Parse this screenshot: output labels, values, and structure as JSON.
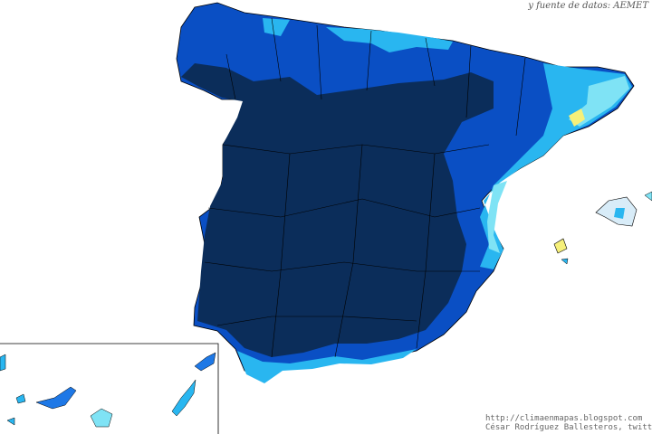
{
  "header": {
    "source_text": "y fuente de datos: AEMET"
  },
  "credits": {
    "url": "http://climaenmapas.blogspot.com",
    "author": "César Rodríguez Ballesteros, twitter: @crb"
  },
  "colors": {
    "darkest": "#0b2d5a",
    "dark_blue": "#0a4fc4",
    "mid_blue": "#1e78e6",
    "light_blue": "#29b6f0",
    "cyan": "#7fe3f5",
    "pale": "#d8ecf8",
    "yellow": "#f6f07a",
    "border": "#000000"
  }
}
